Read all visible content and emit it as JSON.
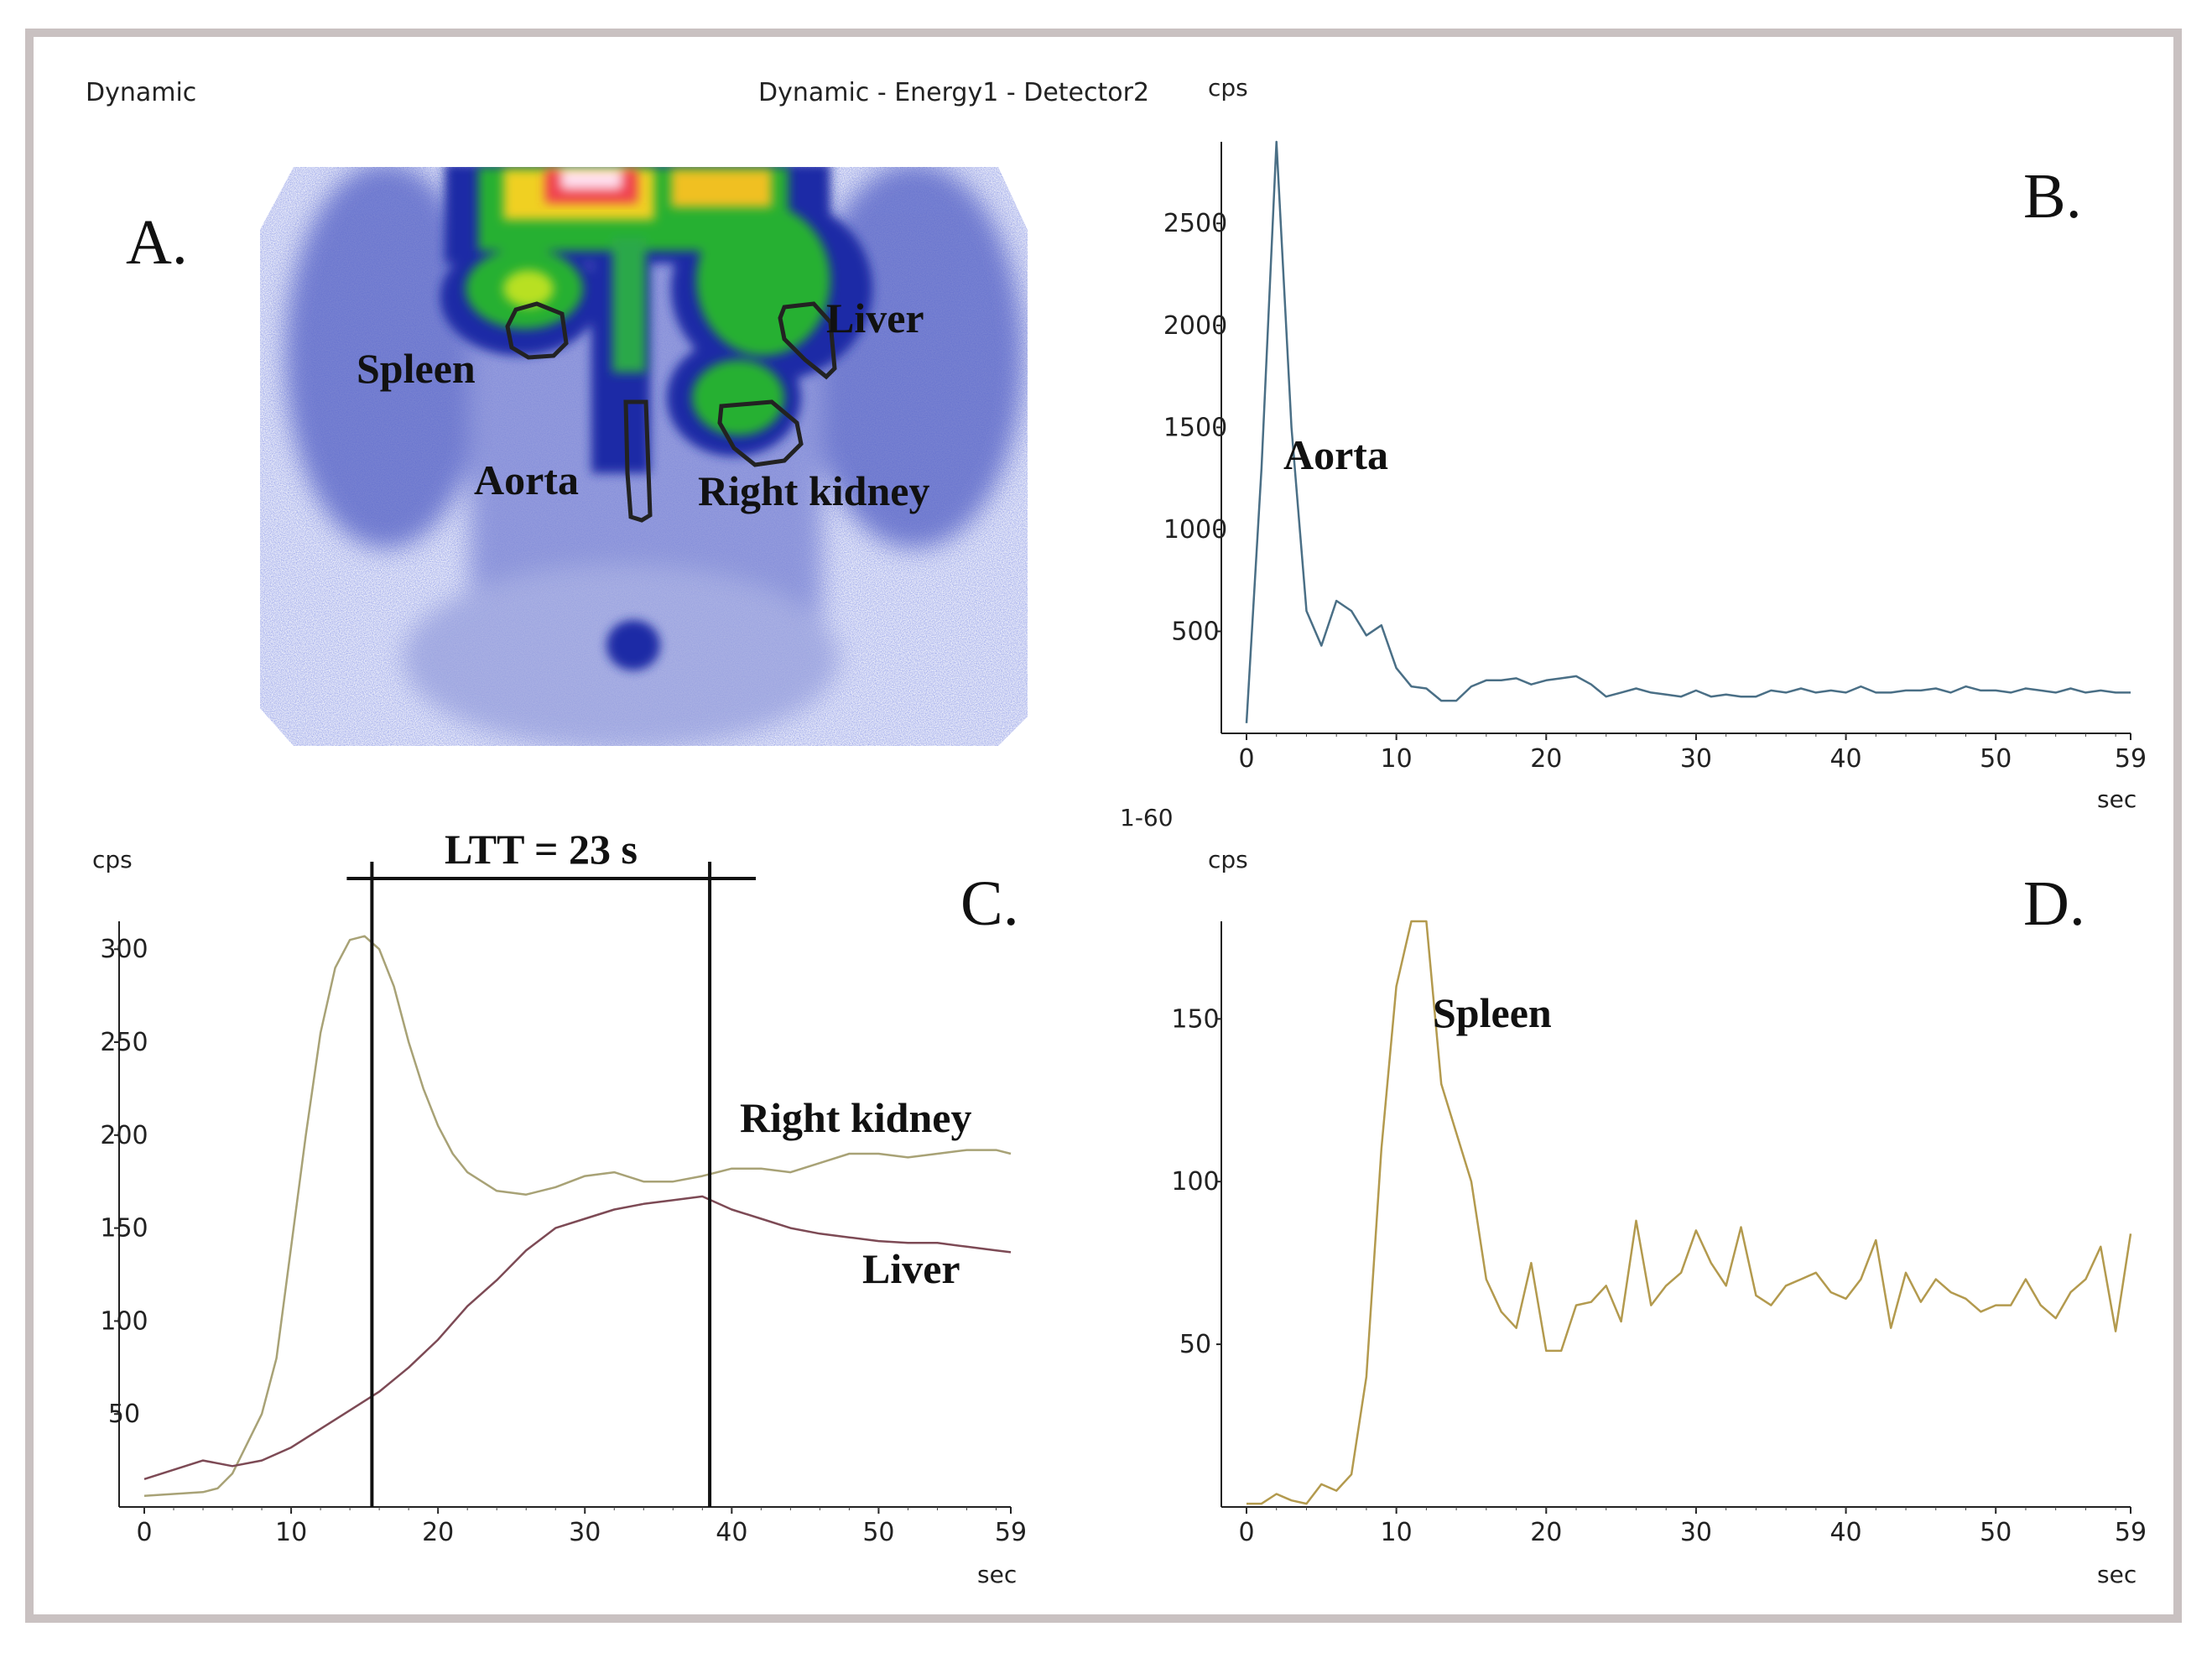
{
  "header": {
    "left": "Dynamic",
    "center": "Dynamic - Energy1 - Detector2",
    "frame_range": "1-60"
  },
  "panels": {
    "A": {
      "letter": "A.",
      "labels": {
        "spleen": "Spleen",
        "liver": "Liver",
        "aorta": "Aorta",
        "right_kidney": "Right kidney"
      }
    },
    "B": {
      "letter": "B.",
      "annotation": "Aorta"
    },
    "C": {
      "letter": "C.",
      "ltt": "LTT = 23 s",
      "annotation_kidney": "Right kidney",
      "annotation_liver": "Liver"
    },
    "D": {
      "letter": "D.",
      "annotation": "Spleen"
    }
  },
  "chart_data": [
    {
      "id": "B",
      "type": "line",
      "ylabel": "cps",
      "xlabel": "sec",
      "xlim": [
        0,
        59
      ],
      "ylim": [
        0,
        2900
      ],
      "xticks": [
        "0",
        "10",
        "20",
        "30",
        "40",
        "50",
        "59"
      ],
      "xtick_values": [
        0,
        10,
        20,
        30,
        40,
        50,
        59
      ],
      "yticks": [
        "500",
        "1000",
        "1500",
        "2000",
        "2500"
      ],
      "ytick_values": [
        500,
        1000,
        1500,
        2000,
        2500
      ],
      "color": "#4a6f86",
      "series": [
        {
          "name": "Aorta",
          "x": [
            0,
            1,
            2,
            3,
            4,
            5,
            6,
            7,
            8,
            9,
            10,
            11,
            12,
            13,
            14,
            15,
            16,
            17,
            18,
            19,
            20,
            21,
            22,
            23,
            24,
            25,
            26,
            27,
            28,
            29,
            30,
            31,
            32,
            33,
            34,
            35,
            36,
            37,
            38,
            39,
            40,
            41,
            42,
            43,
            44,
            45,
            46,
            47,
            48,
            49,
            50,
            51,
            52,
            53,
            54,
            55,
            56,
            57,
            58,
            59
          ],
          "y": [
            50,
            1300,
            2900,
            1500,
            600,
            430,
            650,
            600,
            480,
            530,
            320,
            230,
            220,
            160,
            160,
            230,
            260,
            260,
            270,
            240,
            260,
            270,
            280,
            240,
            180,
            200,
            220,
            200,
            190,
            180,
            210,
            180,
            190,
            180,
            180,
            210,
            200,
            220,
            200,
            210,
            200,
            230,
            200,
            200,
            210,
            210,
            220,
            200,
            230,
            210,
            210,
            200,
            220,
            210,
            200,
            220,
            200,
            210,
            200,
            200
          ]
        }
      ]
    },
    {
      "id": "C",
      "type": "line",
      "ylabel": "cps",
      "xlabel": "sec",
      "xlim": [
        0,
        59
      ],
      "ylim": [
        0,
        315
      ],
      "xticks": [
        "0",
        "10",
        "20",
        "30",
        "40",
        "50",
        "59"
      ],
      "xtick_values": [
        0,
        10,
        20,
        30,
        40,
        50,
        59
      ],
      "yticks": [
        "50",
        "100",
        "150",
        "200",
        "250",
        "300"
      ],
      "ytick_values": [
        50,
        100,
        150,
        200,
        250,
        300
      ],
      "ltt_x": [
        15.5,
        38.5
      ],
      "series": [
        {
          "name": "Right kidney",
          "color": "#a8a276",
          "x": [
            0,
            2,
            4,
            5,
            6,
            8,
            9,
            10,
            11,
            12,
            13,
            14,
            15,
            16,
            17,
            18,
            19,
            20,
            21,
            22,
            24,
            26,
            28,
            30,
            32,
            34,
            36,
            38,
            40,
            42,
            44,
            46,
            48,
            50,
            52,
            54,
            56,
            58,
            59
          ],
          "y": [
            6,
            7,
            8,
            10,
            18,
            50,
            80,
            140,
            200,
            255,
            290,
            305,
            307,
            300,
            280,
            250,
            225,
            205,
            190,
            180,
            170,
            168,
            172,
            178,
            180,
            175,
            175,
            178,
            182,
            182,
            180,
            185,
            190,
            190,
            188,
            190,
            192,
            192,
            190
          ]
        },
        {
          "name": "Liver",
          "color": "#7d4a55",
          "x": [
            0,
            2,
            4,
            6,
            8,
            10,
            12,
            14,
            16,
            18,
            20,
            22,
            24,
            26,
            28,
            30,
            32,
            34,
            36,
            38,
            40,
            42,
            44,
            46,
            48,
            50,
            52,
            54,
            56,
            58,
            59
          ],
          "y": [
            15,
            20,
            25,
            22,
            25,
            32,
            42,
            52,
            62,
            75,
            90,
            108,
            122,
            138,
            150,
            155,
            160,
            163,
            165,
            167,
            160,
            155,
            150,
            147,
            145,
            143,
            142,
            142,
            140,
            138,
            137
          ]
        }
      ]
    },
    {
      "id": "D",
      "type": "line",
      "ylabel": "cps",
      "xlabel": "sec",
      "xlim": [
        0,
        59
      ],
      "ylim": [
        0,
        180
      ],
      "xticks": [
        "0",
        "10",
        "20",
        "30",
        "40",
        "50",
        "59"
      ],
      "xtick_values": [
        0,
        10,
        20,
        30,
        40,
        50,
        59
      ],
      "yticks": [
        "50",
        "100",
        "150"
      ],
      "ytick_values": [
        50,
        100,
        150
      ],
      "color": "#b39a4e",
      "series": [
        {
          "name": "Spleen",
          "x": [
            0,
            1,
            2,
            3,
            4,
            5,
            6,
            7,
            8,
            9,
            10,
            11,
            12,
            13,
            14,
            15,
            16,
            17,
            18,
            19,
            20,
            21,
            22,
            23,
            24,
            25,
            26,
            27,
            28,
            29,
            30,
            31,
            32,
            33,
            34,
            35,
            36,
            37,
            38,
            39,
            40,
            41,
            42,
            43,
            44,
            45,
            46,
            47,
            48,
            49,
            50,
            51,
            52,
            53,
            54,
            55,
            56,
            57,
            58,
            59
          ],
          "y": [
            1,
            1,
            4,
            2,
            1,
            7,
            5,
            10,
            40,
            110,
            160,
            180,
            180,
            130,
            115,
            100,
            70,
            60,
            55,
            75,
            48,
            48,
            62,
            63,
            68,
            57,
            88,
            62,
            68,
            72,
            85,
            75,
            68,
            86,
            65,
            62,
            68,
            70,
            72,
            66,
            64,
            70,
            82,
            55,
            72,
            63,
            70,
            66,
            64,
            60,
            62,
            62,
            70,
            62,
            58,
            66,
            70,
            80,
            54,
            84
          ]
        }
      ]
    }
  ],
  "colors": {
    "frame": "#c9c1c1",
    "axis": "#222222",
    "text": "#222222",
    "scan_background": "#f3f4fb",
    "scan_blue": "#2433b0",
    "scan_green": "#1faa2a",
    "scan_yellow": "#f0e020",
    "scan_red": "#e0203a"
  }
}
